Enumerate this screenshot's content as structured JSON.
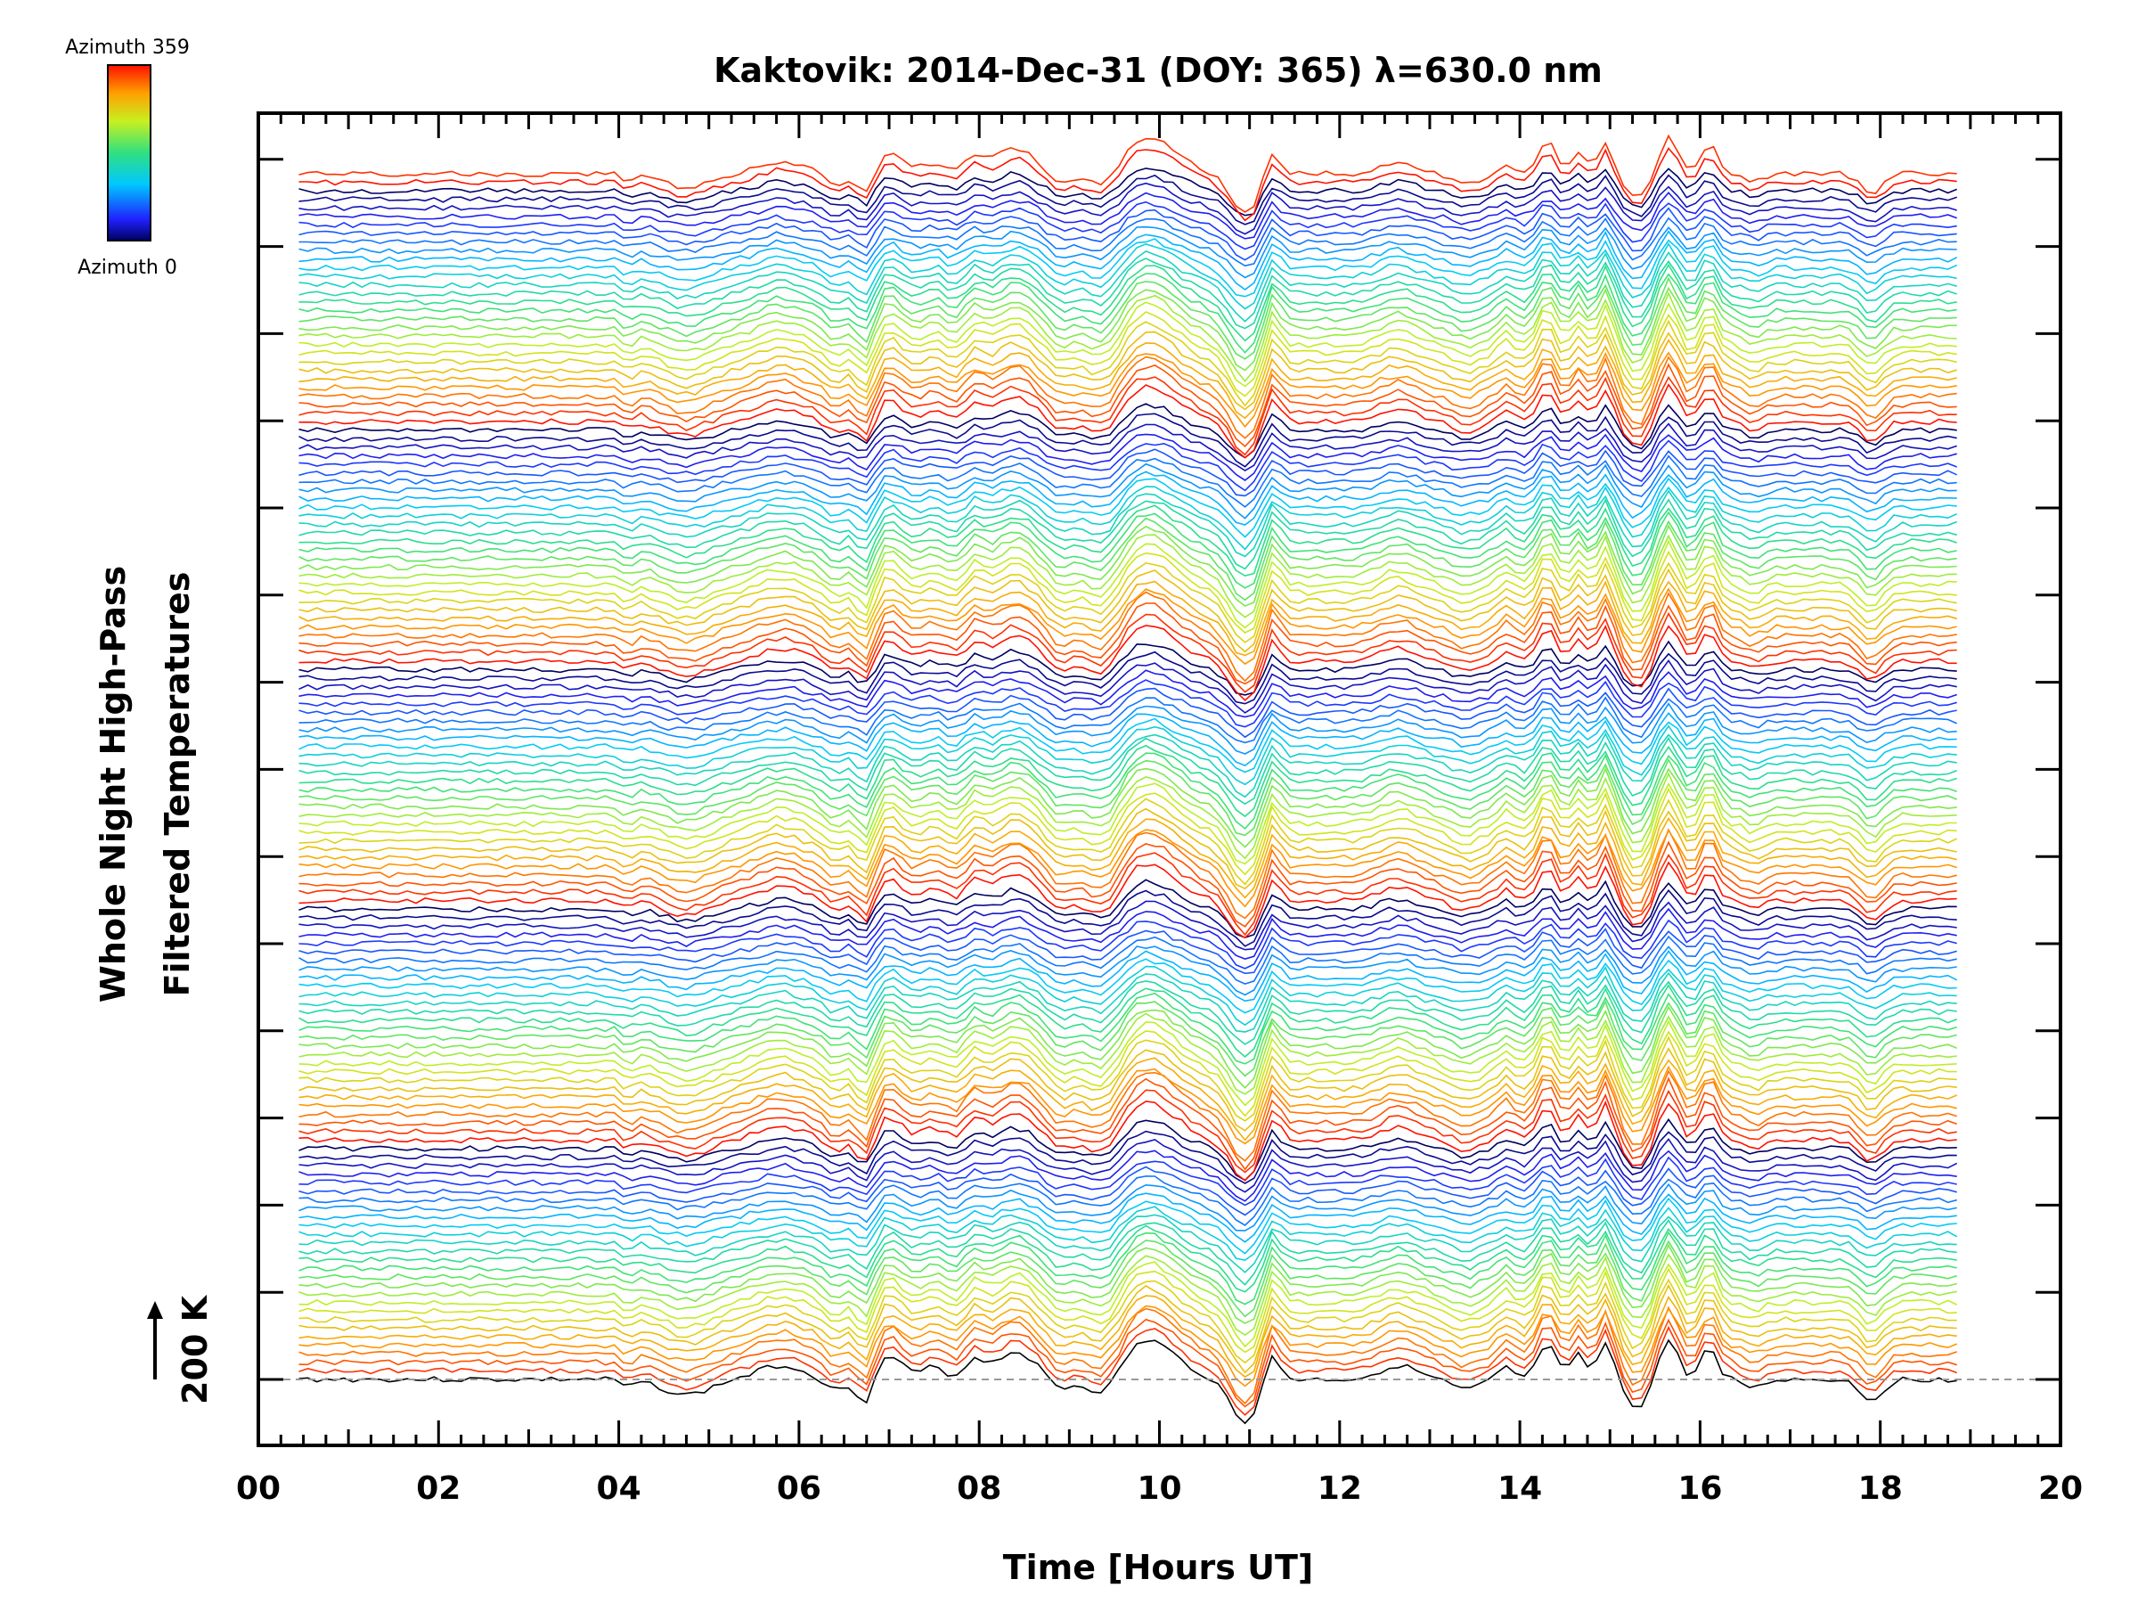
{
  "chart_data": {
    "type": "line",
    "title": "Kaktovik: 2014-Dec-31 (DOY: 365) λ=630.0 nm",
    "xlabel": "Time [Hours UT]",
    "ylabel_line1": "Whole Night High-Pass",
    "ylabel_line2": "Filtered Temperatures",
    "xlim": [
      0,
      20
    ],
    "x_ticks": [
      "00",
      "02",
      "04",
      "06",
      "08",
      "10",
      "12",
      "14",
      "16",
      "18",
      "20"
    ],
    "data_range_hours": [
      0.45,
      18.9
    ],
    "scale_label": "200 K",
    "baseline": "dashed",
    "colorbar": {
      "top_label": "Azimuth 359",
      "bottom_label": "Azimuth 0",
      "colormap": "rainbow (blue → cyan → green → yellow → red)"
    },
    "n_traces": 142,
    "stack_order": "bottom to top, each trace offset upward",
    "grid": false
  }
}
